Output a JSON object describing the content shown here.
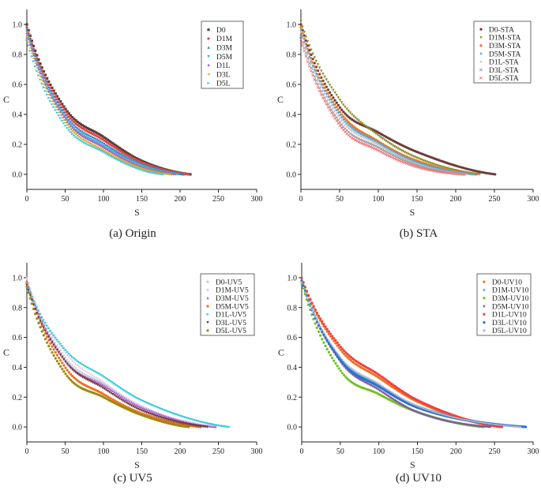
{
  "figure": {
    "panels": [
      "a",
      "b",
      "c",
      "d"
    ]
  },
  "chart_data": [
    {
      "id": "a",
      "type": "line",
      "caption": "(a) Origin",
      "xlabel": "S",
      "ylabel": "C",
      "xlim": [
        0,
        300
      ],
      "ylim": [
        -0.1,
        1.1
      ],
      "xticks": [
        "0",
        "50",
        "100",
        "150",
        "200",
        "250",
        "300"
      ],
      "yticks": [
        "0.0",
        "0.2",
        "0.4",
        "0.6",
        "0.8",
        "1.0"
      ],
      "legend_position": "top-right",
      "series": [
        {
          "name": "D0",
          "color": "#5a3c3c",
          "marker": "square",
          "smax": 214,
          "c0": 1.0,
          "c50": 0.44,
          "c100": 0.25,
          "c150": 0.09
        },
        {
          "name": "D1M",
          "color": "#e8453c",
          "marker": "circle",
          "smax": 212,
          "c0": 0.98,
          "c50": 0.42,
          "c100": 0.23,
          "c150": 0.08
        },
        {
          "name": "D3M",
          "color": "#3a7fc8",
          "marker": "triangle",
          "smax": 206,
          "c0": 0.97,
          "c50": 0.4,
          "c100": 0.21,
          "c150": 0.07
        },
        {
          "name": "D5M",
          "color": "#26b7c9",
          "marker": "tri-down",
          "smax": 200,
          "c0": 0.95,
          "c50": 0.38,
          "c100": 0.19,
          "c150": 0.06
        },
        {
          "name": "D1L",
          "color": "#b35cc8",
          "marker": "diamond",
          "smax": 195,
          "c0": 0.94,
          "c50": 0.37,
          "c100": 0.18,
          "c150": 0.05
        },
        {
          "name": "D3L",
          "color": "#d8b020",
          "marker": "tri-left",
          "smax": 188,
          "c0": 0.92,
          "c50": 0.35,
          "c100": 0.16,
          "c150": 0.04
        },
        {
          "name": "D5L",
          "color": "#3fc8e0",
          "marker": "tri-right",
          "smax": 180,
          "c0": 0.9,
          "c50": 0.33,
          "c100": 0.15,
          "c150": 0.03
        }
      ]
    },
    {
      "id": "b",
      "type": "line",
      "caption": "(b) STA",
      "xlabel": "S",
      "ylabel": "C",
      "xlim": [
        0,
        300
      ],
      "ylim": [
        -0.1,
        1.1
      ],
      "xticks": [
        "0",
        "50",
        "100",
        "150",
        "200",
        "250",
        "300"
      ],
      "yticks": [
        "0.0",
        "0.2",
        "0.4",
        "0.6",
        "0.8",
        "1.0"
      ],
      "legend_position": "top-right",
      "series": [
        {
          "name": "D0-STA",
          "color": "#6e3a3a",
          "marker": "circle",
          "smax": 252,
          "c0": 1.0,
          "c50": 0.45,
          "c100": 0.28,
          "c150": 0.15
        },
        {
          "name": "D1M-STA",
          "color": "#8a8a20",
          "marker": "tri-down",
          "smax": 232,
          "c0": 1.02,
          "c50": 0.5,
          "c100": 0.26,
          "c150": 0.11
        },
        {
          "name": "D3M-STA",
          "color": "#f07820",
          "marker": "circle",
          "smax": 228,
          "c0": 0.98,
          "c50": 0.42,
          "c100": 0.22,
          "c150": 0.09
        },
        {
          "name": "D5M-STA",
          "color": "#4aa8e0",
          "marker": "diamond",
          "smax": 225,
          "c0": 0.96,
          "c50": 0.4,
          "c100": 0.21,
          "c150": 0.08
        },
        {
          "name": "D1L-STA",
          "color": "#c0c0c0",
          "marker": "plus",
          "smax": 215,
          "c0": 0.95,
          "c50": 0.38,
          "c100": 0.2,
          "c150": 0.07
        },
        {
          "name": "D3L-STA",
          "color": "#9a9aa8",
          "marker": "cross",
          "smax": 210,
          "c0": 0.92,
          "c50": 0.35,
          "c100": 0.18,
          "c150": 0.06
        },
        {
          "name": "D5L-STA",
          "color": "#f07878",
          "marker": "cross",
          "smax": 212,
          "c0": 0.9,
          "c50": 0.33,
          "c100": 0.16,
          "c150": 0.05
        }
      ]
    },
    {
      "id": "c",
      "type": "line",
      "caption": "(c) UV5",
      "xlabel": "S",
      "ylabel": "C",
      "xlim": [
        0,
        300
      ],
      "ylim": [
        -0.1,
        1.1
      ],
      "xticks": [
        "0",
        "50",
        "100",
        "150",
        "200",
        "250",
        "300"
      ],
      "yticks": [
        "0.0",
        "0.2",
        "0.4",
        "0.6",
        "0.8",
        "1.0"
      ],
      "legend_position": "top-right",
      "series": [
        {
          "name": "D0-UV5",
          "color": "#c8c8c8",
          "marker": "dot",
          "smax": 232,
          "c0": 1.0,
          "c50": 0.47,
          "c100": 0.29,
          "c150": 0.14
        },
        {
          "name": "D1M-UV5",
          "color": "#e0c8e8",
          "marker": "dot",
          "smax": 240,
          "c0": 0.99,
          "c50": 0.5,
          "c100": 0.3,
          "c150": 0.14
        },
        {
          "name": "D3M-UV5",
          "color": "#b060d0",
          "marker": "triangle",
          "smax": 248,
          "c0": 0.98,
          "c50": 0.45,
          "c100": 0.28,
          "c150": 0.13
        },
        {
          "name": "D5M-UV5",
          "color": "#f07020",
          "marker": "circle",
          "smax": 228,
          "c0": 0.97,
          "c50": 0.4,
          "c100": 0.22,
          "c150": 0.09
        },
        {
          "name": "D1L-UV5",
          "color": "#30c8d8",
          "marker": "tri-right",
          "smax": 265,
          "c0": 0.96,
          "c50": 0.52,
          "c100": 0.34,
          "c150": 0.18
        },
        {
          "name": "D3L-UV5",
          "color": "#6a3a3a",
          "marker": "tri-down",
          "smax": 236,
          "c0": 0.95,
          "c50": 0.44,
          "c100": 0.26,
          "c150": 0.11
        },
        {
          "name": "D5L-UV5",
          "color": "#9a8a10",
          "marker": "circle",
          "smax": 212,
          "c0": 0.94,
          "c50": 0.36,
          "c100": 0.2,
          "c150": 0.08
        }
      ]
    },
    {
      "id": "d",
      "type": "line",
      "caption": "(d) UV10",
      "xlabel": "S",
      "ylabel": "C",
      "xlim": [
        0,
        300
      ],
      "ylim": [
        -0.1,
        1.1
      ],
      "xticks": [
        "0",
        "50",
        "100",
        "150",
        "200",
        "250",
        "300"
      ],
      "yticks": [
        "0.0",
        "0.2",
        "0.4",
        "0.6",
        "0.8",
        "1.0"
      ],
      "legend_position": "top-right",
      "series": [
        {
          "name": "D0-UV10",
          "color": "#f07020",
          "marker": "circle",
          "smax": 258,
          "c0": 1.0,
          "c50": 0.52,
          "c100": 0.33,
          "c150": 0.17
        },
        {
          "name": "D1M-UV10",
          "color": "#4aa8e0",
          "marker": "diamond",
          "smax": 290,
          "c0": 0.99,
          "c50": 0.46,
          "c100": 0.28,
          "c150": 0.14
        },
        {
          "name": "D3M-UV10",
          "color": "#70c020",
          "marker": "circle",
          "smax": 236,
          "c0": 0.97,
          "c50": 0.38,
          "c100": 0.22,
          "c150": 0.1
        },
        {
          "name": "D5M-UV10",
          "color": "#7a5a9a",
          "marker": "diamond",
          "smax": 246,
          "c0": 0.98,
          "c50": 0.44,
          "c100": 0.25,
          "c150": 0.1
        },
        {
          "name": "D1L-UV10",
          "color": "#f04040",
          "marker": "circle",
          "smax": 260,
          "c0": 1.0,
          "c50": 0.54,
          "c100": 0.35,
          "c150": 0.18
        },
        {
          "name": "D3L-UV10",
          "color": "#2a70d0",
          "marker": "circle",
          "smax": 292,
          "c0": 0.98,
          "c50": 0.45,
          "c100": 0.27,
          "c150": 0.13
        },
        {
          "name": "D5L-UV10",
          "color": "#b8b8c8",
          "marker": "dot",
          "smax": 285,
          "c0": 0.97,
          "c50": 0.47,
          "c100": 0.29,
          "c150": 0.14
        }
      ]
    }
  ]
}
